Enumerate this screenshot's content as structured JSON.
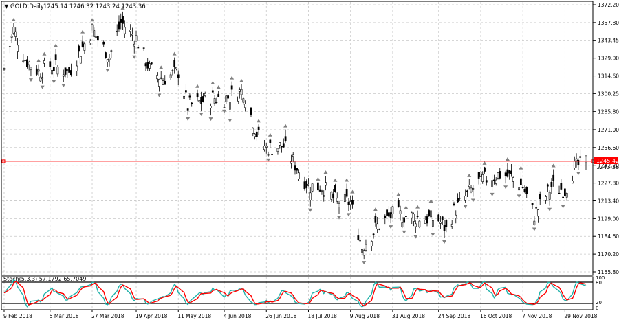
{
  "header": {
    "symbol_label": "GOLD,Daily",
    "ohlc": "1245.14 1246.32 1243.24 1243.36"
  },
  "price_axis": {
    "ticks": [
      "1372.20",
      "1357.80",
      "1343.45",
      "1329.00",
      "1314.60",
      "1300.25",
      "1285.80",
      "1271.00",
      "1256.60",
      "1242.20",
      "1227.80",
      "1213.40",
      "1199.00",
      "1184.60",
      "1170.20",
      "1155.80"
    ],
    "current_price": "1245.42",
    "bid_price": "1243.36"
  },
  "time_axis": {
    "labels": [
      "9 Feb 2018",
      "5 Mar 2018",
      "27 Mar 2018",
      "19 Apr 2018",
      "11 May 2018",
      "4 Jun 2018",
      "26 Jun 2018",
      "18 Jul 2018",
      "9 Aug 2018",
      "31 Aug 2018",
      "24 Sep 2018",
      "16 Oct 2018",
      "7 Nov 2018",
      "29 Nov 2018"
    ]
  },
  "indicator": {
    "label": "Stoch(5,3,3) 57.1792 65.7049",
    "levels": [
      "100",
      "80",
      "20",
      "0"
    ]
  },
  "colors": {
    "background": "#ffffff",
    "grid": "#c8c8c8",
    "candle": "#000000",
    "price_line": "#ff0000",
    "fractal": "#808080",
    "stoch_main": "#20b2aa",
    "stoch_signal": "#ff0000"
  },
  "chart_data": {
    "type": "candlestick",
    "title": "GOLD,Daily",
    "ylim": [
      1155.8,
      1372.2
    ],
    "x_range": [
      "9 Feb 2018",
      "10 Dec 2018"
    ],
    "current_price": 1245.42,
    "close_path": [
      {
        "date": "9 Feb 2018",
        "value": 1320
      },
      {
        "date": "14 Feb 2018",
        "value": 1352
      },
      {
        "date": "20 Feb 2018",
        "value": 1328
      },
      {
        "date": "27 Feb 2018",
        "value": 1318
      },
      {
        "date": "5 Mar 2018",
        "value": 1323
      },
      {
        "date": "15 Mar 2018",
        "value": 1318
      },
      {
        "date": "27 Mar 2018",
        "value": 1352
      },
      {
        "date": "5 Apr 2018",
        "value": 1330
      },
      {
        "date": "11 Apr 2018",
        "value": 1358
      },
      {
        "date": "19 Apr 2018",
        "value": 1345
      },
      {
        "date": "26 Apr 2018",
        "value": 1320
      },
      {
        "date": "3 May 2018",
        "value": 1312
      },
      {
        "date": "11 May 2018",
        "value": 1318
      },
      {
        "date": "16 May 2018",
        "value": 1290
      },
      {
        "date": "29 May 2018",
        "value": 1297
      },
      {
        "date": "4 Jun 2018",
        "value": 1296
      },
      {
        "date": "14 Jun 2018",
        "value": 1303
      },
      {
        "date": "21 Jun 2018",
        "value": 1268
      },
      {
        "date": "26 Jun 2018",
        "value": 1256
      },
      {
        "date": "5 Jul 2018",
        "value": 1258
      },
      {
        "date": "18 Jul 2018",
        "value": 1225
      },
      {
        "date": "25 Jul 2018",
        "value": 1225
      },
      {
        "date": "2 Aug 2018",
        "value": 1213
      },
      {
        "date": "9 Aug 2018",
        "value": 1212
      },
      {
        "date": "15 Aug 2018",
        "value": 1176
      },
      {
        "date": "23 Aug 2018",
        "value": 1193
      },
      {
        "date": "31 Aug 2018",
        "value": 1202
      },
      {
        "date": "13 Sep 2018",
        "value": 1200
      },
      {
        "date": "24 Sep 2018",
        "value": 1198
      },
      {
        "date": "28 Sep 2018",
        "value": 1190
      },
      {
        "date": "2 Oct 2018",
        "value": 1205
      },
      {
        "date": "11 Oct 2018",
        "value": 1222
      },
      {
        "date": "16 Oct 2018",
        "value": 1230
      },
      {
        "date": "26 Oct 2018",
        "value": 1235
      },
      {
        "date": "2 Nov 2018",
        "value": 1232
      },
      {
        "date": "7 Nov 2018",
        "value": 1225
      },
      {
        "date": "13 Nov 2018",
        "value": 1202
      },
      {
        "date": "22 Nov 2018",
        "value": 1225
      },
      {
        "date": "29 Nov 2018",
        "value": 1222
      },
      {
        "date": "4 Dec 2018",
        "value": 1240
      },
      {
        "date": "10 Dec 2018",
        "value": 1245
      }
    ],
    "stochastic": {
      "name": "Stoch(5,3,3)",
      "main": 57.1792,
      "signal": 65.7049,
      "levels": [
        20,
        80
      ],
      "ylim": [
        0,
        100
      ]
    }
  }
}
